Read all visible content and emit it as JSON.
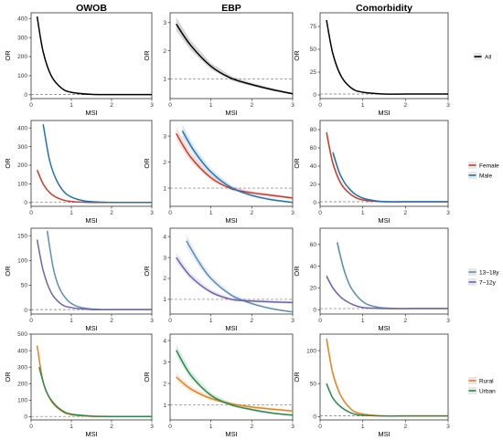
{
  "columns": [
    "OWOB",
    "EBP",
    "Comorbidity"
  ],
  "chart_data": [
    {
      "type": "line",
      "row": 1,
      "column": "OWOB",
      "xlabel": "MSI",
      "ylabel": "OR",
      "xlim": [
        0,
        3
      ],
      "xticks": [
        "0",
        "1",
        "2",
        "3"
      ],
      "ylim": [
        -20,
        430
      ],
      "yticks": [
        0,
        100,
        200,
        300,
        400
      ],
      "reference_line": 1,
      "grid": false,
      "series": [
        {
          "name": "All",
          "color": "#000000",
          "band": false,
          "x": [
            0.15,
            0.3,
            0.5,
            0.75,
            1.0,
            1.5,
            2.0,
            2.5,
            3.0
          ],
          "y": [
            410,
            225,
            100,
            36,
            13,
            2,
            1,
            1,
            1
          ]
        }
      ]
    },
    {
      "type": "line",
      "row": 1,
      "column": "EBP",
      "xlabel": "MSI",
      "ylabel": "OR",
      "xlim": [
        0,
        3
      ],
      "xticks": [
        "0",
        "1",
        "2",
        "3"
      ],
      "ylim": [
        0.3,
        3.35
      ],
      "yticks": [
        1,
        2,
        3
      ],
      "reference_line": 1,
      "grid": false,
      "series": [
        {
          "name": "All",
          "color": "#000000",
          "band": true,
          "x": [
            0.15,
            0.5,
            1.0,
            1.5,
            2.0,
            2.5,
            3.0
          ],
          "y": [
            2.95,
            2.2,
            1.45,
            1.02,
            0.8,
            0.62,
            0.47
          ]
        }
      ]
    },
    {
      "type": "line",
      "row": 1,
      "column": "Comorbidity",
      "xlabel": "MSI",
      "ylabel": "OR",
      "xlim": [
        0,
        3
      ],
      "xticks": [
        "0",
        "1",
        "2",
        "3"
      ],
      "ylim": [
        -4,
        90
      ],
      "yticks": [
        0,
        25,
        50,
        75
      ],
      "reference_line": 1,
      "grid": false,
      "series": [
        {
          "name": "All",
          "color": "#000000",
          "band": false,
          "x": [
            0.15,
            0.3,
            0.5,
            0.75,
            1.0,
            1.5,
            2.0,
            2.5,
            3.0
          ],
          "y": [
            82,
            45,
            20,
            7,
            3,
            1,
            1,
            1,
            1
          ]
        }
      ]
    },
    {
      "type": "line",
      "row": 2,
      "column": "OWOB",
      "xlabel": "MSI",
      "ylabel": "OR",
      "xlim": [
        0,
        3
      ],
      "xticks": [
        "0",
        "1",
        "2",
        "3"
      ],
      "ylim": [
        -20,
        440
      ],
      "yticks": [
        0,
        100,
        200,
        300,
        400
      ],
      "reference_line": 1,
      "grid": false,
      "series": [
        {
          "name": "Female",
          "color": "#cc3a28",
          "band": false,
          "x": [
            0.15,
            0.3,
            0.5,
            0.75,
            1.0,
            1.5,
            2.0,
            2.5,
            3.0
          ],
          "y": [
            175,
            100,
            46,
            17,
            6,
            1,
            1,
            1,
            1
          ]
        },
        {
          "name": "Male",
          "color": "#1f73b5",
          "band": false,
          "x": [
            0.3,
            0.45,
            0.6,
            0.8,
            1.0,
            1.3,
            1.6,
            2.0,
            2.5,
            3.0
          ],
          "y": [
            420,
            235,
            135,
            62,
            30,
            10,
            4,
            1,
            1,
            1
          ]
        }
      ]
    },
    {
      "type": "line",
      "row": 2,
      "column": "EBP",
      "xlabel": "MSI",
      "ylabel": "OR",
      "xlim": [
        0,
        3
      ],
      "xticks": [
        "0",
        "1",
        "2",
        "3"
      ],
      "ylim": [
        0.3,
        3.6
      ],
      "yticks": [
        1,
        2,
        3
      ],
      "reference_line": 1,
      "grid": false,
      "series": [
        {
          "name": "Female",
          "color": "#cc3a28",
          "band": true,
          "x": [
            0.15,
            0.5,
            1.0,
            1.5,
            2.0,
            2.5,
            3.0
          ],
          "y": [
            3.1,
            2.2,
            1.4,
            0.98,
            0.82,
            0.72,
            0.62
          ]
        },
        {
          "name": "Male",
          "color": "#1f73b5",
          "band": true,
          "x": [
            0.3,
            0.6,
            1.0,
            1.5,
            2.0,
            2.5,
            3.0
          ],
          "y": [
            3.2,
            2.4,
            1.62,
            1.02,
            0.72,
            0.55,
            0.45
          ]
        }
      ]
    },
    {
      "type": "line",
      "row": 2,
      "column": "Comorbidity",
      "xlabel": "MSI",
      "ylabel": "OR",
      "xlim": [
        0,
        3
      ],
      "xticks": [
        "0",
        "1",
        "2",
        "3"
      ],
      "ylim": [
        -4,
        90
      ],
      "yticks": [
        0,
        20,
        40,
        60,
        80
      ],
      "reference_line": 1,
      "grid": false,
      "series": [
        {
          "name": "Female",
          "color": "#cc3a28",
          "band": true,
          "x": [
            0.15,
            0.3,
            0.5,
            0.75,
            1.0,
            1.5,
            2.0,
            2.5,
            3.0
          ],
          "y": [
            77,
            43,
            20,
            8,
            3,
            1,
            1,
            1,
            1
          ]
        },
        {
          "name": "Male",
          "color": "#1f73b5",
          "band": true,
          "x": [
            0.3,
            0.45,
            0.6,
            0.8,
            1.0,
            1.3,
            1.6,
            2.0,
            2.5,
            3.0
          ],
          "y": [
            55,
            33,
            20,
            10,
            5,
            2,
            1,
            1,
            1,
            1
          ]
        }
      ]
    },
    {
      "type": "line",
      "row": 3,
      "column": "OWOB",
      "xlabel": "MSI",
      "ylabel": "OR",
      "xlim": [
        0,
        3
      ],
      "xticks": [
        "0",
        "1",
        "2",
        "3"
      ],
      "ylim": [
        -8,
        165
      ],
      "yticks": [
        0,
        50,
        100,
        150
      ],
      "reference_line": 1,
      "grid": false,
      "series": [
        {
          "name": "13~18y",
          "color": "#5b8db5",
          "band": false,
          "x": [
            0.4,
            0.55,
            0.7,
            0.9,
            1.1,
            1.4,
            1.8,
            2.2,
            2.6,
            3.0
          ],
          "y": [
            160,
            85,
            45,
            20,
            9,
            3,
            1,
            1,
            1,
            1
          ]
        },
        {
          "name": "7~12y",
          "color": "#6e64ae",
          "band": false,
          "x": [
            0.15,
            0.3,
            0.5,
            0.75,
            1.0,
            1.5,
            2.0,
            2.5,
            3.0
          ],
          "y": [
            142,
            80,
            35,
            12,
            5,
            1,
            1,
            1,
            1
          ]
        }
      ]
    },
    {
      "type": "line",
      "row": 3,
      "column": "EBP",
      "xlabel": "MSI",
      "ylabel": "OR",
      "xlim": [
        0,
        3
      ],
      "xticks": [
        "0",
        "1",
        "2",
        "3"
      ],
      "ylim": [
        0.3,
        4.4
      ],
      "yticks": [
        1,
        2,
        3,
        4
      ],
      "reference_line": 1,
      "grid": false,
      "series": [
        {
          "name": "13~18y",
          "color": "#5b8db5",
          "band": true,
          "x": [
            0.4,
            0.7,
            1.0,
            1.5,
            2.0,
            2.5,
            3.0
          ],
          "y": [
            3.8,
            2.8,
            2.0,
            1.2,
            0.8,
            0.55,
            0.4
          ]
        },
        {
          "name": "7~12y",
          "color": "#6e64ae",
          "band": true,
          "x": [
            0.15,
            0.5,
            1.0,
            1.5,
            2.0,
            2.5,
            3.0
          ],
          "y": [
            3.0,
            2.1,
            1.35,
            1.0,
            0.92,
            0.88,
            0.85
          ]
        }
      ]
    },
    {
      "type": "line",
      "row": 3,
      "column": "Comorbidity",
      "xlabel": "MSI",
      "ylabel": "OR",
      "xlim": [
        0,
        3
      ],
      "xticks": [
        "0",
        "1",
        "2",
        "3"
      ],
      "ylim": [
        -4,
        75
      ],
      "yticks": [
        0,
        20,
        40,
        60
      ],
      "reference_line": 1,
      "grid": false,
      "series": [
        {
          "name": "13~18y",
          "color": "#5b8db5",
          "band": true,
          "x": [
            0.4,
            0.55,
            0.7,
            0.9,
            1.1,
            1.4,
            1.8,
            2.2,
            2.6,
            3.0
          ],
          "y": [
            62,
            38,
            22,
            11,
            5,
            2,
            1,
            1,
            1,
            1
          ]
        },
        {
          "name": "7~12y",
          "color": "#6e64ae",
          "band": true,
          "x": [
            0.15,
            0.3,
            0.5,
            0.75,
            1.0,
            1.5,
            2.0,
            2.5,
            3.0
          ],
          "y": [
            31,
            20,
            11,
            5,
            2,
            1,
            1,
            1,
            1
          ]
        }
      ]
    },
    {
      "type": "line",
      "row": 4,
      "column": "OWOB",
      "xlabel": "MSI",
      "ylabel": "OR",
      "xlim": [
        0,
        3
      ],
      "xticks": [
        "0",
        "1",
        "2",
        "3"
      ],
      "ylim": [
        -20,
        500
      ],
      "yticks": [
        0,
        100,
        200,
        300,
        400,
        500
      ],
      "reference_line": 1,
      "grid": false,
      "series": [
        {
          "name": "Rural",
          "color": "#e8821e",
          "band": false,
          "x": [
            0.15,
            0.3,
            0.5,
            0.75,
            1.0,
            1.5,
            2.0,
            2.5,
            3.0
          ],
          "y": [
            430,
            210,
            95,
            35,
            12,
            2,
            1,
            1,
            1
          ]
        },
        {
          "name": "Urban",
          "color": "#2a8a4a",
          "band": false,
          "x": [
            0.2,
            0.35,
            0.5,
            0.75,
            1.0,
            1.5,
            2.0,
            2.5,
            3.0
          ],
          "y": [
            300,
            170,
            100,
            40,
            15,
            3,
            1,
            1,
            1
          ]
        }
      ]
    },
    {
      "type": "line",
      "row": 4,
      "column": "EBP",
      "xlabel": "MSI",
      "ylabel": "OR",
      "xlim": [
        0,
        3
      ],
      "xticks": [
        "0",
        "1",
        "2",
        "3"
      ],
      "ylim": [
        0.3,
        4.3
      ],
      "yticks": [
        1,
        2,
        3,
        4
      ],
      "reference_line": 1,
      "grid": false,
      "series": [
        {
          "name": "Rural",
          "color": "#e8821e",
          "band": true,
          "x": [
            0.15,
            0.5,
            1.0,
            1.5,
            2.0,
            2.5,
            3.0
          ],
          "y": [
            2.3,
            1.75,
            1.3,
            1.05,
            0.9,
            0.8,
            0.72
          ]
        },
        {
          "name": "Urban",
          "color": "#2a8a4a",
          "band": true,
          "x": [
            0.15,
            0.5,
            1.0,
            1.5,
            2.0,
            2.5,
            3.0
          ],
          "y": [
            3.55,
            2.4,
            1.45,
            1.0,
            0.78,
            0.62,
            0.52
          ]
        }
      ]
    },
    {
      "type": "line",
      "row": 4,
      "column": "Comorbidity",
      "xlabel": "MSI",
      "ylabel": "OR",
      "xlim": [
        0,
        3
      ],
      "xticks": [
        "0",
        "1",
        "2",
        "3"
      ],
      "ylim": [
        -5,
        125
      ],
      "yticks": [
        0,
        50,
        100
      ],
      "reference_line": 1,
      "grid": false,
      "series": [
        {
          "name": "Rural",
          "color": "#e8821e",
          "band": true,
          "x": [
            0.15,
            0.3,
            0.5,
            0.75,
            1.0,
            1.5,
            2.0,
            2.5,
            3.0
          ],
          "y": [
            118,
            65,
            30,
            10,
            4,
            1,
            1,
            1,
            1
          ]
        },
        {
          "name": "Urban",
          "color": "#2a8a4a",
          "band": true,
          "x": [
            0.15,
            0.3,
            0.5,
            0.75,
            1.0,
            1.5,
            2.0,
            2.5,
            3.0
          ],
          "y": [
            50,
            28,
            14,
            5,
            2,
            1,
            1,
            1,
            1
          ]
        }
      ]
    }
  ],
  "legends": [
    {
      "row": 1,
      "items": [
        {
          "label": "All",
          "color": "#000000"
        }
      ]
    },
    {
      "row": 2,
      "items": [
        {
          "label": "Female",
          "color": "#cc3a28"
        },
        {
          "label": "Male",
          "color": "#1f73b5"
        }
      ]
    },
    {
      "row": 3,
      "items": [
        {
          "label": "13~18y",
          "color": "#5b8db5"
        },
        {
          "label": "7~12y",
          "color": "#6e64ae"
        }
      ]
    },
    {
      "row": 4,
      "items": [
        {
          "label": "Rural",
          "color": "#e8821e"
        },
        {
          "label": "Urban",
          "color": "#2a8a4a"
        }
      ]
    }
  ]
}
